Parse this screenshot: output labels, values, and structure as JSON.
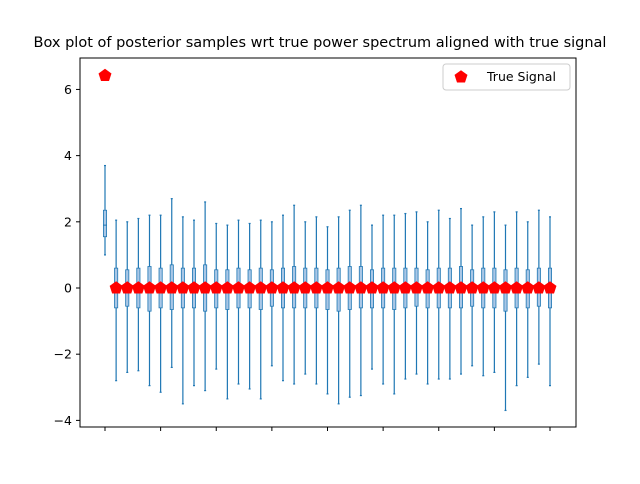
{
  "chart_data": {
    "type": "box",
    "title": "Box plot of posterior samples wrt true power spectrum aligned with true signal",
    "xlabel": "",
    "ylabel": "",
    "ylim": [
      -4.2,
      6.95
    ],
    "yticks": [
      -4,
      -2,
      0,
      2,
      4,
      6
    ],
    "ytick_labels": [
      "−4",
      "−2",
      "0",
      "2",
      "4",
      "6"
    ],
    "n_positions": 41,
    "xtick_every": 5,
    "grid": false,
    "legend_position": "top-right",
    "colors": {
      "box": "#1f77b4",
      "box_fill": "#a9c7e6",
      "signal": "#ff0000",
      "axis": "#000000"
    },
    "boxes": {
      "max": [
        3.7,
        2.05,
        2.0,
        2.1,
        2.2,
        2.2,
        2.7,
        2.15,
        2.05,
        2.6,
        1.95,
        1.9,
        2.05,
        1.95,
        2.05,
        2.0,
        2.2,
        2.5,
        2.0,
        2.15,
        1.85,
        2.15,
        2.35,
        2.5,
        1.9,
        2.2,
        2.2,
        2.25,
        2.3,
        2.0,
        2.35,
        2.1,
        2.4,
        1.9,
        2.15,
        2.3,
        1.9,
        2.3,
        2.0,
        2.35,
        2.15
      ],
      "min": [
        1.0,
        -2.8,
        -2.55,
        -2.5,
        -2.95,
        -3.15,
        -2.4,
        -3.5,
        -2.95,
        -3.1,
        -2.45,
        -3.35,
        -2.9,
        -3.05,
        -3.35,
        -2.35,
        -2.8,
        -2.9,
        -2.6,
        -2.9,
        -3.2,
        -3.5,
        -3.3,
        -3.25,
        -2.45,
        -2.9,
        -3.2,
        -2.75,
        -2.6,
        -2.9,
        -2.75,
        -2.75,
        -2.6,
        -2.35,
        -2.65,
        -2.55,
        -3.7,
        -2.95,
        -2.7,
        -2.3,
        -2.95
      ],
      "q1": [
        1.55,
        -0.6,
        -0.55,
        -0.6,
        -0.7,
        -0.6,
        -0.65,
        -0.6,
        -0.6,
        -0.7,
        -0.6,
        -0.65,
        -0.6,
        -0.6,
        -0.65,
        -0.55,
        -0.6,
        -0.6,
        -0.6,
        -0.6,
        -0.65,
        -0.7,
        -0.65,
        -0.6,
        -0.6,
        -0.6,
        -0.65,
        -0.6,
        -0.55,
        -0.6,
        -0.6,
        -0.6,
        -0.6,
        -0.55,
        -0.6,
        -0.6,
        -0.7,
        -0.6,
        -0.6,
        -0.55,
        -0.6
      ],
      "median": [
        1.9,
        0.0,
        0.0,
        0.0,
        0.0,
        0.0,
        0.0,
        0.0,
        0.0,
        0.0,
        0.0,
        0.0,
        0.0,
        0.0,
        0.0,
        0.0,
        0.0,
        0.0,
        0.0,
        0.0,
        0.0,
        0.0,
        0.0,
        0.0,
        0.0,
        0.0,
        0.0,
        0.0,
        0.0,
        0.0,
        0.0,
        0.0,
        0.0,
        0.0,
        0.0,
        0.0,
        0.0,
        0.0,
        0.0,
        0.0,
        0.0
      ],
      "q3": [
        2.35,
        0.6,
        0.55,
        0.6,
        0.65,
        0.6,
        0.7,
        0.6,
        0.6,
        0.7,
        0.55,
        0.55,
        0.6,
        0.55,
        0.6,
        0.55,
        0.6,
        0.65,
        0.6,
        0.6,
        0.55,
        0.6,
        0.65,
        0.65,
        0.55,
        0.6,
        0.6,
        0.6,
        0.6,
        0.55,
        0.6,
        0.6,
        0.65,
        0.55,
        0.6,
        0.6,
        0.55,
        0.6,
        0.55,
        0.6,
        0.6
      ]
    },
    "series": [
      {
        "name": "True Signal",
        "marker": "pentagon",
        "values": [
          6.42,
          0,
          0,
          0,
          0,
          0,
          0,
          0,
          0,
          0,
          0,
          0,
          0,
          0,
          0,
          0,
          0,
          0,
          0,
          0,
          0,
          0,
          0,
          0,
          0,
          0,
          0,
          0,
          0,
          0,
          0,
          0,
          0,
          0,
          0,
          0,
          0,
          0,
          0,
          0,
          0
        ]
      }
    ]
  }
}
